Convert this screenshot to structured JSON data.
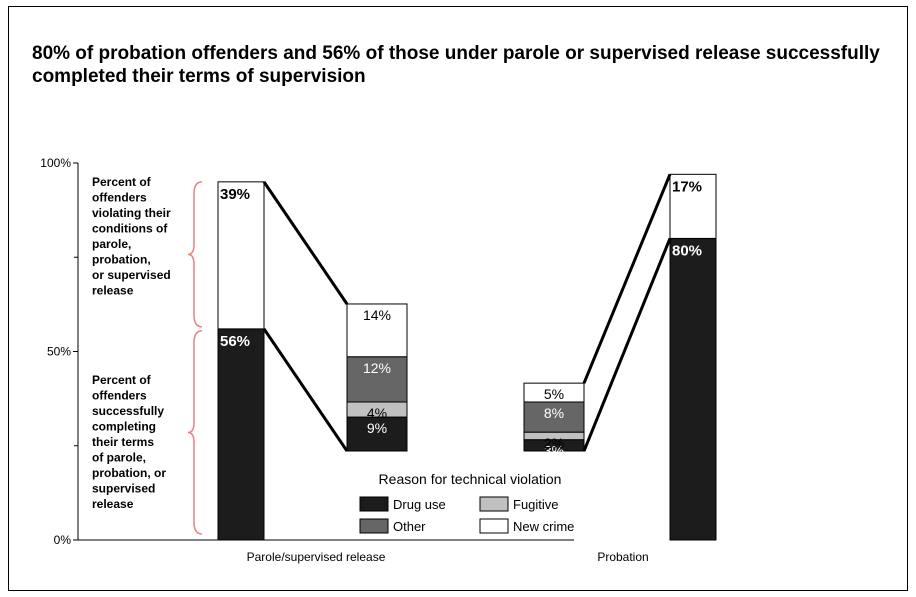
{
  "title": "80% of probation offenders and 56% of those under parole or supervised release successfully completed their terms of supervision",
  "colors": {
    "drug_use": "#1c1c1c",
    "other": "#666666",
    "fugitive": "#c0c0c0",
    "new_crime": "#ffffff",
    "successful": "#1c1c1c",
    "violating": "#ffffff",
    "brace": "#f08080"
  },
  "chart_data": {
    "type": "bar",
    "categories": [
      "Parole/supervised release",
      "Probation"
    ],
    "ylim": [
      0,
      100
    ],
    "yticks": [
      "0%",
      "50%",
      "100%"
    ],
    "main_bars": [
      {
        "category": "Parole/supervised release",
        "successful": 56,
        "violating": 39,
        "successful_label": "56%",
        "violating_label": "39%"
      },
      {
        "category": "Probation",
        "successful": 80,
        "violating": 17,
        "successful_label": "80%",
        "violating_label": "17%"
      }
    ],
    "breakdown_bars": [
      {
        "category": "Parole/supervised release",
        "segments": [
          {
            "name": "Drug use",
            "value": 9,
            "label": "9%"
          },
          {
            "name": "Fugitive",
            "value": 4,
            "label": "4%"
          },
          {
            "name": "Other",
            "value": 12,
            "label": "12%"
          },
          {
            "name": "New crime",
            "value": 14,
            "label": "14%"
          }
        ]
      },
      {
        "category": "Probation",
        "segments": [
          {
            "name": "Drug use",
            "value": 3,
            "label": "3%"
          },
          {
            "name": "Fugitive",
            "value": 2,
            "label": "2%"
          },
          {
            "name": "Other",
            "value": 8,
            "label": "8%"
          },
          {
            "name": "New crime",
            "value": 5,
            "label": "5%"
          }
        ]
      }
    ],
    "annotations": {
      "violating": [
        "Percent of",
        "offenders",
        "violating their",
        "conditions of",
        "parole,",
        "probation,",
        "or supervised",
        "release"
      ],
      "successful": [
        "Percent of",
        "offenders",
        "successfully",
        "completing",
        "their terms",
        "of parole,",
        "probation, or",
        "supervised",
        "release"
      ]
    },
    "legend": {
      "title": "Reason for technical violation",
      "items": [
        {
          "name": "Drug use",
          "key": "drug_use"
        },
        {
          "name": "Fugitive",
          "key": "fugitive"
        },
        {
          "name": "Other",
          "key": "other"
        },
        {
          "name": "New crime",
          "key": "new_crime"
        }
      ]
    }
  }
}
